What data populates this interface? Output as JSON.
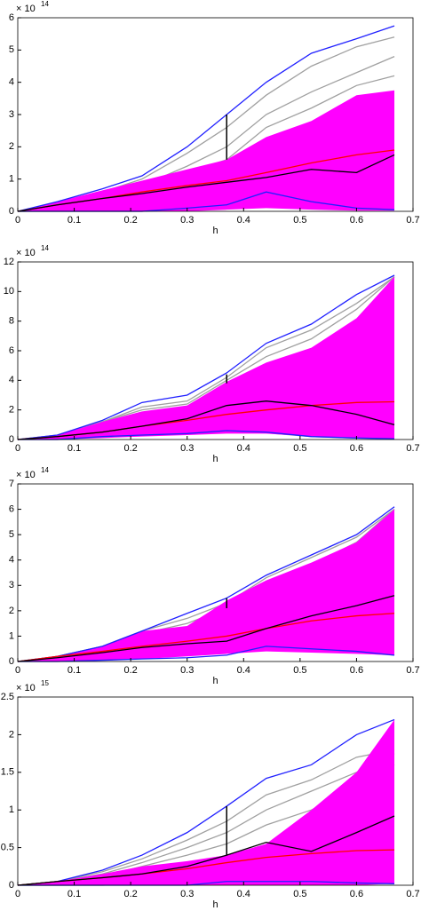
{
  "chart_data": [
    {
      "type": "line",
      "exponent_base": "× 10",
      "exponent": "14",
      "xlabel": "h",
      "x": [
        0,
        0.07,
        0.15,
        0.22,
        0.3,
        0.37,
        0.44,
        0.52,
        0.6,
        0.667
      ],
      "xlim": [
        0,
        0.7
      ],
      "xticks": [
        0,
        0.1,
        0.2,
        0.3,
        0.4,
        0.5,
        0.6,
        0.7
      ],
      "ylim": [
        0,
        6
      ],
      "yticks": [
        0,
        1,
        2,
        3,
        4,
        5,
        6
      ],
      "series": [
        {
          "color": "#a0a0a0",
          "values": [
            0,
            0.25,
            0.6,
            1.0,
            1.8,
            2.6,
            3.6,
            4.5,
            5.1,
            5.4
          ]
        },
        {
          "color": "#a0a0a0",
          "values": [
            0,
            0.2,
            0.5,
            0.8,
            1.4,
            2.0,
            3.0,
            3.7,
            4.3,
            4.8
          ]
        },
        {
          "color": "#a0a0a0",
          "values": [
            0,
            0.2,
            0.5,
            0.8,
            1.2,
            1.6,
            2.6,
            3.2,
            3.9,
            4.2
          ]
        },
        {
          "color": "#a0a0a0",
          "values": [
            0,
            0,
            0,
            0,
            0.05,
            0.1,
            0.4,
            0.2,
            0.1,
            0.05
          ]
        },
        {
          "color": "#ff00ff",
          "values": [
            0,
            0.3,
            0.65,
            0.95,
            1.3,
            1.6,
            2.3,
            2.8,
            3.6,
            3.75
          ],
          "low": [
            0,
            0,
            0,
            0,
            0,
            0.05,
            0.1,
            0.05,
            0.02,
            0.02
          ]
        },
        {
          "color": "#2020ff",
          "values": [
            0,
            0.3,
            0.7,
            1.1,
            2.0,
            3.0,
            4.0,
            4.9,
            5.35,
            5.75
          ]
        },
        {
          "color": "#2020ff",
          "values": [
            0,
            0,
            0,
            0,
            0.1,
            0.2,
            0.6,
            0.3,
            0.1,
            0.05
          ]
        },
        {
          "color": "#ff0000",
          "values": [
            0,
            0.2,
            0.4,
            0.6,
            0.8,
            0.95,
            1.2,
            1.5,
            1.75,
            1.9
          ]
        },
        {
          "color": "#000000",
          "values": [
            0,
            0.2,
            0.4,
            0.55,
            0.75,
            0.9,
            1.05,
            1.3,
            1.2,
            1.75
          ]
        }
      ],
      "segments": [
        {
          "x": 0.37,
          "y": [
            1.6,
            3.0
          ],
          "color": "#000000"
        }
      ]
    },
    {
      "type": "line",
      "exponent_base": "× 10",
      "exponent": "14",
      "xlabel": "h",
      "x": [
        0,
        0.07,
        0.15,
        0.22,
        0.3,
        0.37,
        0.44,
        0.52,
        0.6,
        0.667
      ],
      "xlim": [
        0,
        0.7
      ],
      "xticks": [
        0,
        0.1,
        0.2,
        0.3,
        0.4,
        0.5,
        0.6,
        0.7
      ],
      "ylim": [
        0,
        12
      ],
      "yticks": [
        0,
        2,
        4,
        6,
        8,
        10,
        12
      ],
      "series": [
        {
          "color": "#a0a0a0",
          "values": [
            0,
            0.3,
            1.2,
            2.2,
            2.6,
            4.2,
            6.2,
            7.4,
            9.2,
            11
          ]
        },
        {
          "color": "#a0a0a0",
          "values": [
            0,
            0.3,
            1.2,
            2.0,
            2.4,
            4.0,
            5.6,
            6.8,
            8.8,
            11
          ]
        },
        {
          "color": "#a0a0a0",
          "values": [
            0,
            0.1,
            0.2,
            0.3,
            0.4,
            0.5,
            0.45,
            0.2,
            0.1,
            0.05
          ]
        },
        {
          "color": "#ff00ff",
          "values": [
            0,
            0.3,
            1.2,
            1.9,
            2.3,
            3.9,
            5.2,
            6.2,
            8.2,
            11.0
          ],
          "low": [
            0,
            0,
            0.1,
            0.2,
            0.3,
            0.4,
            0.4,
            0.2,
            0.1,
            0.05
          ]
        },
        {
          "color": "#2020ff",
          "values": [
            0,
            0.3,
            1.3,
            2.5,
            3.0,
            4.5,
            6.5,
            7.8,
            9.8,
            11.1
          ]
        },
        {
          "color": "#2020ff",
          "values": [
            0,
            0,
            0.2,
            0.3,
            0.4,
            0.6,
            0.5,
            0.2,
            0.1,
            0.05
          ]
        },
        {
          "color": "#ff0000",
          "values": [
            0,
            0.2,
            0.5,
            0.9,
            1.3,
            1.7,
            2.0,
            2.3,
            2.5,
            2.55
          ]
        },
        {
          "color": "#000000",
          "values": [
            0,
            0.2,
            0.5,
            0.9,
            1.4,
            2.3,
            2.6,
            2.3,
            1.7,
            1.0
          ]
        }
      ],
      "segments": [
        {
          "x": 0.37,
          "y": [
            3.8,
            4.4
          ],
          "color": "#000000"
        }
      ]
    },
    {
      "type": "line",
      "exponent_base": "× 10",
      "exponent": "14",
      "xlabel": "h",
      "x": [
        0,
        0.07,
        0.15,
        0.22,
        0.3,
        0.37,
        0.44,
        0.52,
        0.6,
        0.667
      ],
      "xlim": [
        0,
        0.7
      ],
      "xticks": [
        0,
        0.1,
        0.2,
        0.3,
        0.4,
        0.5,
        0.6,
        0.7
      ],
      "ylim": [
        0,
        7
      ],
      "yticks": [
        0,
        1,
        2,
        3,
        4,
        5,
        6,
        7
      ],
      "series": [
        {
          "color": "#a0a0a0",
          "values": [
            0,
            0.2,
            0.6,
            1.2,
            1.7,
            2.3,
            3.3,
            4.1,
            4.9,
            6.0
          ]
        },
        {
          "color": "#a0a0a0",
          "values": [
            0,
            0.2,
            0.6,
            1.1,
            1.5,
            2.1,
            3.0,
            3.8,
            4.7,
            6.0
          ]
        },
        {
          "color": "#a0a0a0",
          "values": [
            0,
            0.05,
            0.1,
            0.2,
            0.3,
            0.45,
            0.5,
            0.45,
            0.35,
            0.25
          ]
        },
        {
          "color": "#ff00ff",
          "values": [
            0,
            0.2,
            0.6,
            1.2,
            1.4,
            2.4,
            3.2,
            3.9,
            4.7,
            6.0
          ],
          "low": [
            0,
            0,
            0.05,
            0.1,
            0.2,
            0.3,
            0.4,
            0.35,
            0.3,
            0.25
          ]
        },
        {
          "color": "#2020ff",
          "values": [
            0,
            0.2,
            0.6,
            1.2,
            1.9,
            2.5,
            3.4,
            4.2,
            5.0,
            6.1
          ]
        },
        {
          "color": "#2020ff",
          "values": [
            0,
            0,
            0.05,
            0.1,
            0.15,
            0.25,
            0.6,
            0.5,
            0.4,
            0.25
          ]
        },
        {
          "color": "#ff0000",
          "values": [
            0,
            0.2,
            0.4,
            0.6,
            0.8,
            1.0,
            1.3,
            1.6,
            1.8,
            1.9
          ]
        },
        {
          "color": "#000000",
          "values": [
            0,
            0.15,
            0.35,
            0.55,
            0.7,
            0.8,
            1.3,
            1.8,
            2.2,
            2.6
          ]
        }
      ],
      "segments": [
        {
          "x": 0.37,
          "y": [
            2.1,
            2.5
          ],
          "color": "#000000"
        }
      ]
    },
    {
      "type": "line",
      "exponent_base": "× 10",
      "exponent": "15",
      "xlabel": "h",
      "x": [
        0,
        0.07,
        0.15,
        0.22,
        0.3,
        0.37,
        0.44,
        0.52,
        0.6,
        0.667
      ],
      "xlim": [
        0,
        0.7
      ],
      "xticks": [
        0,
        0.1,
        0.2,
        0.3,
        0.4,
        0.5,
        0.6,
        0.7
      ],
      "ylim": [
        0,
        2.5
      ],
      "yticks": [
        0,
        0.5,
        1,
        1.5,
        2,
        2.5
      ],
      "series": [
        {
          "color": "#a0a0a0",
          "values": [
            0,
            0.05,
            0.18,
            0.35,
            0.6,
            0.85,
            1.2,
            1.4,
            1.7,
            1.8
          ]
        },
        {
          "color": "#a0a0a0",
          "values": [
            0,
            0.05,
            0.15,
            0.3,
            0.5,
            0.7,
            1.0,
            1.25,
            1.5,
            1.75
          ]
        },
        {
          "color": "#a0a0a0",
          "values": [
            0,
            0.05,
            0.12,
            0.25,
            0.4,
            0.55,
            0.8,
            1.0,
            1.3,
            1.6
          ]
        },
        {
          "color": "#a0a0a0",
          "values": [
            0,
            0,
            0,
            0.02,
            0.05,
            0.1,
            0.15,
            0.1,
            0.05,
            0.02
          ]
        },
        {
          "color": "#ff00ff",
          "values": [
            0,
            0.05,
            0.15,
            0.25,
            0.32,
            0.4,
            0.55,
            1.0,
            1.5,
            2.2
          ],
          "low": [
            0,
            0,
            0,
            0,
            0,
            0,
            0,
            0,
            0,
            0.02
          ]
        },
        {
          "color": "#2020ff",
          "values": [
            0,
            0.05,
            0.2,
            0.4,
            0.7,
            1.05,
            1.42,
            1.6,
            2.0,
            2.2
          ]
        },
        {
          "color": "#2020ff",
          "values": [
            0,
            0,
            0,
            0,
            0,
            0.05,
            0.05,
            0.05,
            0.03,
            0.02
          ]
        },
        {
          "color": "#ff0000",
          "values": [
            0,
            0.05,
            0.1,
            0.15,
            0.22,
            0.3,
            0.37,
            0.42,
            0.46,
            0.47
          ]
        },
        {
          "color": "#000000",
          "values": [
            0,
            0.05,
            0.1,
            0.15,
            0.25,
            0.4,
            0.57,
            0.45,
            0.7,
            0.92
          ]
        }
      ],
      "segments": [
        {
          "x": 0.37,
          "y": [
            0.4,
            1.05
          ],
          "color": "#000000"
        }
      ]
    }
  ]
}
